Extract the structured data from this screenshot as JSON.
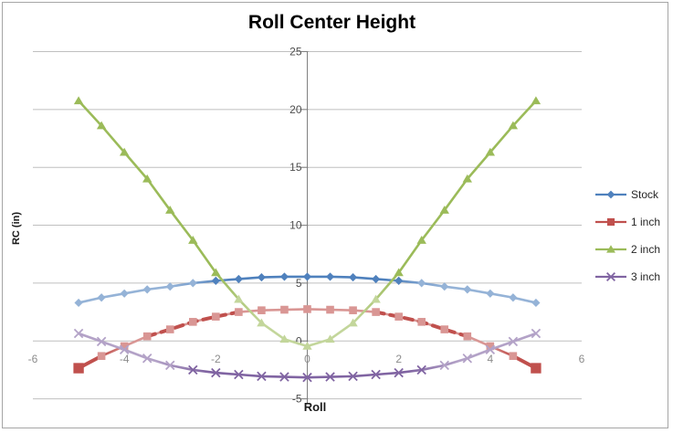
{
  "chart": {
    "title": "Roll Center Height",
    "x_axis_title": "Roll",
    "y_axis_title": "RC (in)"
  },
  "chart_data": {
    "type": "line",
    "title": "Roll Center Height",
    "xlabel": "Roll",
    "ylabel": "RC (in)",
    "xlim": [
      -6,
      6
    ],
    "ylim": [
      -5,
      25
    ],
    "x_ticks": [
      -6,
      -4,
      -2,
      0,
      2,
      4,
      6
    ],
    "y_ticks": [
      25,
      20,
      15,
      10,
      5,
      0,
      -5
    ],
    "grid": "horizontal",
    "legend_position": "right",
    "x": [
      -5,
      -4.5,
      -4,
      -3.5,
      -3,
      -2.5,
      -2,
      -1.5,
      -1,
      -0.5,
      0,
      0.5,
      1,
      1.5,
      2,
      2.5,
      3,
      3.5,
      4,
      4.5,
      5
    ],
    "series": [
      {
        "name": "Stock",
        "marker": "diamond",
        "color": "#4F81BD",
        "color_light": "#95B3D7",
        "marker_dark_rule": {
          "mode": "abs_le",
          "threshold": 2
        },
        "gradient": [
          [
            0,
            "light"
          ],
          [
            0.2,
            "light"
          ],
          [
            0.33,
            "main"
          ],
          [
            0.67,
            "main"
          ],
          [
            0.8,
            "light"
          ],
          [
            1,
            "light"
          ]
        ],
        "values": [
          3.3,
          3.75,
          4.1,
          4.45,
          4.7,
          5.0,
          5.2,
          5.35,
          5.5,
          5.55,
          5.55,
          5.55,
          5.5,
          5.35,
          5.2,
          5.0,
          4.7,
          4.45,
          4.1,
          3.75,
          3.3
        ]
      },
      {
        "name": "1 inch",
        "marker": "square",
        "color": "#C0504D",
        "color_light": "#D99694",
        "marker_dark_rule": {
          "mode": "abs_ge",
          "threshold": 5
        },
        "big_end_markers": true,
        "gradient": [
          [
            0,
            "main"
          ],
          [
            0.05,
            "main"
          ],
          [
            0.11,
            "light"
          ],
          [
            0.89,
            "light"
          ],
          [
            0.95,
            "main"
          ],
          [
            1,
            "main"
          ]
        ],
        "overlays": [
          {
            "range": [
              -5,
              -4.5
            ],
            "dashed": false
          },
          {
            "range": [
              -3.5,
              -1.5
            ],
            "dashed": true
          },
          {
            "range": [
              1.5,
              3.5
            ],
            "dashed": true
          },
          {
            "range": [
              4.5,
              5
            ],
            "dashed": false
          }
        ],
        "values": [
          -2.35,
          -1.3,
          -0.45,
          0.4,
          1.0,
          1.65,
          2.1,
          2.5,
          2.65,
          2.7,
          2.75,
          2.7,
          2.65,
          2.5,
          2.1,
          1.65,
          1.0,
          0.4,
          -0.45,
          -1.3,
          -2.35
        ]
      },
      {
        "name": "2 inch",
        "marker": "triangle",
        "color": "#9BBB59",
        "color_light": "#C3D69B",
        "marker_dark_rule": {
          "mode": "abs_ge",
          "threshold": 2
        },
        "gradient": [
          [
            0,
            "main"
          ],
          [
            0.3,
            "main"
          ],
          [
            0.4,
            "light"
          ],
          [
            0.6,
            "light"
          ],
          [
            0.7,
            "main"
          ],
          [
            1,
            "main"
          ]
        ],
        "values": [
          20.75,
          18.6,
          16.3,
          14.0,
          11.3,
          8.7,
          5.9,
          3.6,
          1.55,
          0.15,
          -0.45,
          0.15,
          1.55,
          3.6,
          5.9,
          8.7,
          11.3,
          14.0,
          16.3,
          18.6,
          20.75
        ]
      },
      {
        "name": "3 inch",
        "marker": "x",
        "color": "#8064A2",
        "color_light": "#B3A2C7",
        "marker_dark_rule": {
          "mode": "abs_le",
          "threshold": 2.5
        },
        "gradient": [
          [
            0,
            "light"
          ],
          [
            0.17,
            "light"
          ],
          [
            0.28,
            "main"
          ],
          [
            0.72,
            "main"
          ],
          [
            0.83,
            "light"
          ],
          [
            1,
            "light"
          ]
        ],
        "values": [
          0.65,
          -0.05,
          -0.75,
          -1.5,
          -2.1,
          -2.5,
          -2.75,
          -2.9,
          -3.05,
          -3.1,
          -3.15,
          -3.1,
          -3.05,
          -2.9,
          -2.75,
          -2.5,
          -2.1,
          -1.5,
          -0.75,
          -0.05,
          0.65
        ]
      }
    ]
  },
  "legend": {
    "items": [
      {
        "label": "Stock"
      },
      {
        "label": "1 inch"
      },
      {
        "label": "2 inch"
      },
      {
        "label": "3 inch"
      }
    ]
  },
  "style_colors": {
    "gridline": "#BFBFBF",
    "axis_line": "#808080",
    "y_tick_label": "#4d4d4d",
    "x_tick_label": "#8c8c8c"
  }
}
